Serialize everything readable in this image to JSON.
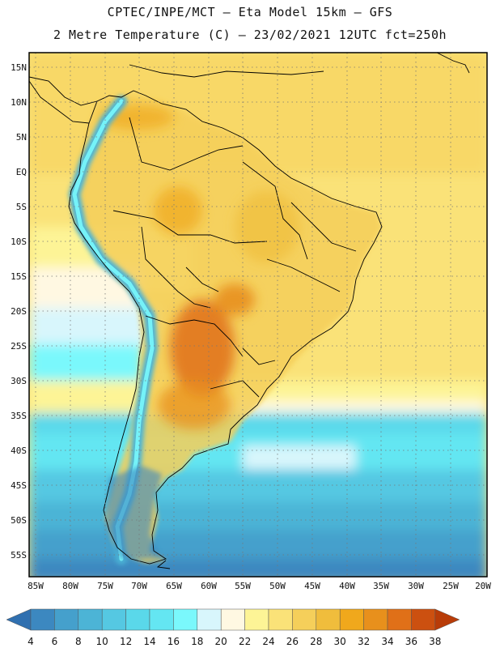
{
  "header": {
    "title_line1": "CPTEC/INPE/MCT –  Eta Model 15km – GFS",
    "title_line2": "2 Metre Temperature (C) – 23/02/2021 12UTC fct=250h"
  },
  "map": {
    "variable": "2 Metre Temperature",
    "units": "C",
    "lat_labels": [
      "15N",
      "10N",
      "5N",
      "EQ",
      "5S",
      "10S",
      "15S",
      "20S",
      "25S",
      "30S",
      "35S",
      "40S",
      "45S",
      "50S",
      "55S"
    ],
    "lon_labels": [
      "85W",
      "80W",
      "75W",
      "70W",
      "65W",
      "60W",
      "55W",
      "50W",
      "45W",
      "40W",
      "35W",
      "30W",
      "25W",
      "20W"
    ],
    "lat_range": [
      -57.5,
      17.5
    ],
    "lon_range": [
      -85.5,
      -19.5
    ]
  },
  "colorbar": {
    "labels": [
      "4",
      "6",
      "8",
      "10",
      "12",
      "14",
      "16",
      "18",
      "20",
      "22",
      "24",
      "26",
      "28",
      "30",
      "32",
      "34",
      "36",
      "38"
    ],
    "colors": [
      "#3070b0",
      "#3c88c0",
      "#45a0cc",
      "#4cb4d6",
      "#55c8e2",
      "#5ad8ea",
      "#64e6f2",
      "#7af8fc",
      "#d8f6fc",
      "#fff8e2",
      "#fdf496",
      "#fae278",
      "#f5cf5a",
      "#f0bd3c",
      "#f0a81c",
      "#e8901c",
      "#e07018",
      "#cc5010",
      "#b83c08"
    ]
  }
}
